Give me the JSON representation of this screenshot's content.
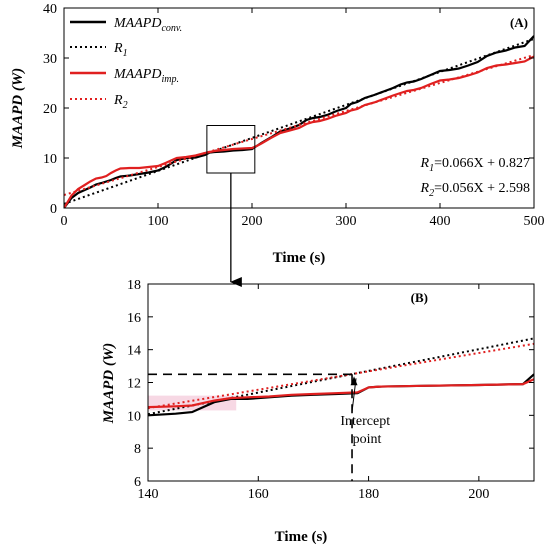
{
  "chart_data": [
    {
      "type": "line",
      "panel_label": "(A)",
      "xlabel": "Time (s)",
      "ylabel": "MAAPD (W)",
      "xlim": [
        0,
        500
      ],
      "ylim": [
        0,
        40
      ],
      "xticks": [
        "0",
        "100",
        "200",
        "300",
        "400",
        "500"
      ],
      "yticks": [
        "0",
        "10",
        "20",
        "30",
        "40"
      ],
      "legend_placement": "top-left",
      "series": [
        {
          "name": "MAAPD conv.",
          "name_main": "MAAPD",
          "name_sub": "conv.",
          "style": "solid",
          "color": "#000000",
          "x": [
            0,
            8,
            15,
            22,
            28,
            34,
            40,
            45,
            50,
            55,
            60,
            70,
            80,
            90,
            100,
            108,
            115,
            120,
            130,
            140,
            150,
            155,
            160,
            170,
            180,
            190,
            200,
            205,
            210,
            220,
            230,
            240,
            250,
            258,
            265,
            272,
            280,
            290,
            300,
            305,
            312,
            320,
            330,
            340,
            350,
            358,
            365,
            372,
            380,
            390,
            400,
            410,
            420,
            430,
            440,
            450,
            460,
            470,
            480,
            490,
            500
          ],
          "y": [
            0,
            2,
            3,
            3.6,
            4.1,
            4.7,
            5.0,
            5.3,
            5.6,
            6.0,
            6.3,
            6.5,
            6.8,
            7.1,
            7.5,
            8.2,
            9.0,
            9.6,
            10.0,
            10.1,
            10.6,
            11.1,
            11.2,
            11.3,
            11.5,
            11.6,
            11.8,
            12.4,
            13.0,
            14.1,
            15.3,
            15.9,
            16.6,
            17.6,
            18.0,
            18.2,
            18.6,
            19.4,
            20.0,
            20.8,
            21.2,
            22.0,
            22.6,
            23.3,
            24.0,
            24.7,
            25.1,
            25.3,
            25.8,
            26.6,
            27.4,
            27.6,
            27.9,
            28.5,
            29.2,
            30.4,
            31.1,
            31.5,
            32.1,
            32.4,
            34.4
          ]
        },
        {
          "name": "R1",
          "name_main": "R",
          "name_sub": "1",
          "style": "dotted",
          "color": "#000000",
          "x": [
            0,
            500
          ],
          "y": [
            0.827,
            33.827
          ]
        },
        {
          "name": "MAAPD imp.",
          "name_main": "MAAPD",
          "name_sub": "imp.",
          "style": "solid",
          "color": "#e02020",
          "x": [
            0,
            8,
            15,
            22,
            28,
            34,
            40,
            45,
            50,
            55,
            60,
            70,
            80,
            90,
            100,
            108,
            115,
            120,
            130,
            140,
            150,
            155,
            160,
            170,
            180,
            190,
            200,
            205,
            210,
            220,
            230,
            240,
            250,
            258,
            265,
            272,
            280,
            290,
            300,
            305,
            312,
            320,
            330,
            340,
            350,
            358,
            365,
            372,
            380,
            390,
            400,
            410,
            420,
            430,
            440,
            450,
            460,
            470,
            480,
            490,
            500
          ],
          "y": [
            0,
            2.5,
            3.8,
            4.6,
            5.3,
            5.9,
            6.1,
            6.4,
            7.0,
            7.5,
            7.9,
            8.0,
            8.0,
            8.2,
            8.4,
            9.0,
            9.6,
            10.0,
            10.2,
            10.5,
            11.0,
            11.2,
            11.4,
            11.6,
            11.8,
            11.9,
            12.0,
            12.4,
            12.9,
            14.0,
            15.0,
            15.5,
            16.0,
            16.8,
            17.2,
            17.4,
            17.8,
            18.5,
            19.0,
            19.5,
            19.8,
            20.6,
            21.1,
            21.8,
            22.5,
            23.0,
            23.4,
            23.6,
            24.0,
            24.8,
            25.5,
            25.7,
            26.0,
            26.5,
            27.1,
            28.0,
            28.5,
            28.7,
            29.0,
            29.3,
            30.3
          ]
        },
        {
          "name": "R2",
          "name_main": "R",
          "name_sub": "2",
          "style": "dotted",
          "color": "#e02020",
          "x": [
            0,
            500
          ],
          "y": [
            2.598,
            30.598
          ]
        }
      ],
      "annotations": [
        {
          "lhs_main": "R",
          "lhs_sub": "1",
          "rhs": "=0.066X + 0.827"
        },
        {
          "lhs_main": "R",
          "lhs_sub": "2",
          "rhs": "=0.056X + 2.598"
        }
      ],
      "zoom_box": {
        "x": [
          152,
          203
        ],
        "y": [
          7,
          16.5
        ]
      }
    },
    {
      "type": "line",
      "panel_label": "(B)",
      "xlabel": "Time (s)",
      "ylabel": "MAAPD (W)",
      "xlim": [
        140,
        210
      ],
      "ylim": [
        6,
        18
      ],
      "xticks": [
        "140",
        "160",
        "180",
        "200"
      ],
      "yticks": [
        "6",
        "8",
        "10",
        "12",
        "14",
        "16",
        "18"
      ],
      "annotation": "Intercept point",
      "intercept": {
        "x": 177,
        "y": 12.5
      },
      "series": [
        {
          "name": "MAAPD conv.",
          "style": "solid",
          "color": "#000000",
          "x": [
            140,
            145,
            148,
            152,
            155,
            158,
            162,
            166,
            170,
            174,
            178,
            180,
            182,
            190,
            200,
            208,
            210
          ],
          "y": [
            10.0,
            10.1,
            10.2,
            10.8,
            11.0,
            11.0,
            11.1,
            11.2,
            11.25,
            11.3,
            11.35,
            11.7,
            11.75,
            11.8,
            11.85,
            11.9,
            12.5
          ]
        },
        {
          "name": "R1",
          "style": "dotted",
          "color": "#000000",
          "x": [
            140,
            210
          ],
          "y": [
            10.067,
            14.687
          ]
        },
        {
          "name": "MAAPD imp.",
          "style": "solid",
          "color": "#e02020",
          "x": [
            140,
            145,
            148,
            152,
            155,
            158,
            162,
            166,
            170,
            174,
            178,
            180,
            182,
            190,
            200,
            208,
            210
          ],
          "y": [
            10.5,
            10.55,
            10.6,
            10.9,
            11.05,
            11.1,
            11.15,
            11.25,
            11.3,
            11.35,
            11.4,
            11.7,
            11.75,
            11.8,
            11.85,
            11.9,
            12.2
          ]
        },
        {
          "name": "R2",
          "style": "dotted",
          "color": "#e02020",
          "x": [
            140,
            210
          ],
          "y": [
            10.438,
            14.358
          ]
        }
      ]
    }
  ]
}
